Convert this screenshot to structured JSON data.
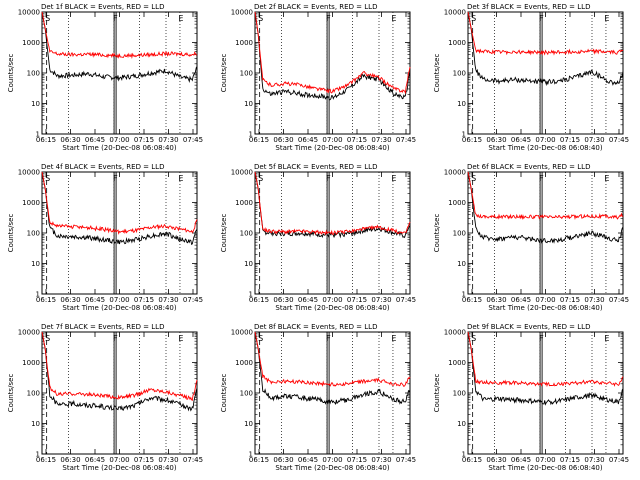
{
  "figure": {
    "title_suffix": "BLACK = Events, RED = LLD",
    "xlabel": "Start Time (20-Dec-08 06:08:40)",
    "ylabel": "Counts/sec",
    "marker_labels": [
      "S",
      "F",
      "E"
    ],
    "colors": {
      "events": "#000000",
      "lld": "#ff0000",
      "axes": "#000000"
    }
  },
  "chart_data": [
    {
      "type": "line",
      "title": "Det 1f BLACK = Events, RED = LLD",
      "yscale": "log",
      "ylim": [
        1,
        10000
      ],
      "yticks": [
        1,
        10,
        100,
        1000,
        10000
      ],
      "ytick_labels": [
        "1",
        "10",
        "100",
        "1000",
        "10000"
      ],
      "xlim": [
        0,
        100
      ],
      "xtick_labels": [
        "06:15",
        "06:30",
        "06:45",
        "07:00",
        "07:15",
        "07:30",
        "07:45"
      ],
      "xlabel": "Start Time (20-Dec-08 06:08:40)",
      "ylabel": "Counts/sec",
      "x": [
        0,
        2,
        5,
        10,
        20,
        30,
        40,
        50,
        60,
        70,
        80,
        90,
        97,
        100
      ],
      "series": [
        {
          "name": "Events",
          "color": "#000000",
          "values": [
            10000,
            3000,
            130,
            80,
            85,
            95,
            75,
            70,
            80,
            100,
            120,
            70,
            60,
            150
          ]
        },
        {
          "name": "LLD",
          "color": "#ff0000",
          "values": [
            10000,
            3000,
            500,
            420,
            400,
            410,
            390,
            370,
            380,
            400,
            430,
            420,
            400,
            450
          ]
        }
      ]
    },
    {
      "type": "line",
      "title": "Det 2f BLACK = Events, RED = LLD",
      "yscale": "log",
      "ylim": [
        1,
        10000
      ],
      "yticks": [
        1,
        10,
        100,
        1000,
        10000
      ],
      "ytick_labels": [
        "1",
        "10",
        "100",
        "1000",
        "10000"
      ],
      "xlim": [
        0,
        100
      ],
      "xtick_labels": [
        "06:15",
        "06:30",
        "06:45",
        "07:00",
        "07:15",
        "07:30",
        "07:45"
      ],
      "xlabel": "Start Time (20-Dec-08 06:08:40)",
      "ylabel": "Counts/sec",
      "x": [
        0,
        2,
        5,
        10,
        20,
        30,
        40,
        50,
        60,
        70,
        80,
        90,
        97,
        100
      ],
      "series": [
        {
          "name": "Events",
          "color": "#000000",
          "values": [
            10000,
            2000,
            30,
            20,
            25,
            20,
            18,
            15,
            30,
            80,
            60,
            20,
            15,
            120
          ]
        },
        {
          "name": "LLD",
          "color": "#ff0000",
          "values": [
            10000,
            2000,
            60,
            40,
            45,
            40,
            30,
            25,
            40,
            100,
            70,
            30,
            25,
            150
          ]
        }
      ]
    },
    {
      "type": "line",
      "title": "Det 3f BLACK = Events, RED = LLD",
      "yscale": "log",
      "ylim": [
        1,
        10000
      ],
      "yticks": [
        1,
        10,
        100,
        1000,
        10000
      ],
      "ytick_labels": [
        "1",
        "10",
        "100",
        "1000",
        "10000"
      ],
      "xlim": [
        0,
        100
      ],
      "xtick_labels": [
        "06:15",
        "06:30",
        "06:45",
        "07:00",
        "07:15",
        "07:30",
        "07:45"
      ],
      "xlabel": "Start Time (20-Dec-08 06:08:40)",
      "ylabel": "Counts/sec",
      "x": [
        0,
        2,
        5,
        10,
        20,
        30,
        40,
        50,
        60,
        70,
        80,
        90,
        97,
        100
      ],
      "series": [
        {
          "name": "Events",
          "color": "#000000",
          "values": [
            10000,
            3000,
            120,
            60,
            55,
            60,
            55,
            50,
            55,
            75,
            110,
            55,
            45,
            100
          ]
        },
        {
          "name": "LLD",
          "color": "#ff0000",
          "values": [
            10000,
            3000,
            550,
            500,
            480,
            500,
            480,
            470,
            480,
            500,
            520,
            490,
            470,
            600
          ]
        }
      ]
    },
    {
      "type": "line",
      "title": "Det 4f BLACK = Events, RED = LLD",
      "yscale": "log",
      "ylim": [
        1,
        10000
      ],
      "yticks": [
        1,
        10,
        100,
        1000,
        10000
      ],
      "ytick_labels": [
        "1",
        "10",
        "100",
        "1000",
        "10000"
      ],
      "xlim": [
        0,
        100
      ],
      "xtick_labels": [
        "06:15",
        "06:30",
        "06:45",
        "07:00",
        "07:15",
        "07:30",
        "07:45"
      ],
      "xlabel": "Start Time (20-Dec-08 06:08:40)",
      "ylabel": "Counts/sec",
      "x": [
        0,
        2,
        5,
        10,
        20,
        30,
        40,
        50,
        60,
        70,
        80,
        90,
        97,
        100
      ],
      "series": [
        {
          "name": "Events",
          "color": "#000000",
          "values": [
            10000,
            3000,
            150,
            80,
            75,
            70,
            60,
            50,
            60,
            80,
            95,
            60,
            50,
            130
          ]
        },
        {
          "name": "LLD",
          "color": "#ff0000",
          "values": [
            10000,
            3000,
            220,
            170,
            160,
            150,
            130,
            110,
            120,
            150,
            170,
            130,
            110,
            250
          ]
        }
      ]
    },
    {
      "type": "line",
      "title": "Det 5f BLACK = Events, RED = LLD",
      "yscale": "log",
      "ylim": [
        1,
        10000
      ],
      "yticks": [
        1,
        10,
        100,
        1000,
        10000
      ],
      "ytick_labels": [
        "1",
        "10",
        "100",
        "1000",
        "10000"
      ],
      "xlim": [
        0,
        100
      ],
      "xtick_labels": [
        "06:15",
        "06:30",
        "06:45",
        "07:00",
        "07:15",
        "07:30",
        "07:45"
      ],
      "xlabel": "Start Time (20-Dec-08 06:08:40)",
      "ylabel": "Counts/sec",
      "x": [
        0,
        2,
        5,
        10,
        20,
        30,
        40,
        50,
        60,
        70,
        80,
        90,
        97,
        100
      ],
      "series": [
        {
          "name": "Events",
          "color": "#000000",
          "values": [
            10000,
            3000,
            110,
            100,
            95,
            100,
            90,
            85,
            95,
            120,
            140,
            100,
            80,
            200
          ]
        },
        {
          "name": "LLD",
          "color": "#ff0000",
          "values": [
            10000,
            3000,
            130,
            115,
            110,
            115,
            105,
            100,
            110,
            135,
            155,
            115,
            95,
            230
          ]
        }
      ]
    },
    {
      "type": "line",
      "title": "Det 6f BLACK = Events, RED = LLD",
      "yscale": "log",
      "ylim": [
        1,
        10000
      ],
      "yticks": [
        1,
        10,
        100,
        1000,
        10000
      ],
      "ytick_labels": [
        "1",
        "10",
        "100",
        "1000",
        "10000"
      ],
      "xlim": [
        0,
        100
      ],
      "xtick_labels": [
        "06:15",
        "06:30",
        "06:45",
        "07:00",
        "07:15",
        "07:30",
        "07:45"
      ],
      "xlabel": "Start Time (20-Dec-08 06:08:40)",
      "ylabel": "Counts/sec",
      "x": [
        0,
        2,
        5,
        10,
        20,
        30,
        40,
        50,
        60,
        70,
        80,
        90,
        97,
        100
      ],
      "series": [
        {
          "name": "Events",
          "color": "#000000",
          "values": [
            10000,
            3000,
            130,
            70,
            65,
            75,
            65,
            55,
            60,
            80,
            100,
            70,
            55,
            140
          ]
        },
        {
          "name": "LLD",
          "color": "#ff0000",
          "values": [
            10000,
            3000,
            380,
            350,
            340,
            350,
            340,
            330,
            335,
            345,
            360,
            345,
            330,
            400
          ]
        }
      ]
    },
    {
      "type": "line",
      "title": "Det 7f BLACK = Events, RED = LLD",
      "yscale": "log",
      "ylim": [
        1,
        10000
      ],
      "yticks": [
        1,
        10,
        100,
        1000,
        10000
      ],
      "ytick_labels": [
        "1",
        "10",
        "100",
        "1000",
        "10000"
      ],
      "xlim": [
        0,
        100
      ],
      "xtick_labels": [
        "06:15",
        "06:30",
        "06:45",
        "07:00",
        "07:15",
        "07:30",
        "07:45"
      ],
      "xlabel": "Start Time (20-Dec-08 06:08:40)",
      "ylabel": "Counts/sec",
      "x": [
        0,
        2,
        5,
        10,
        20,
        30,
        40,
        50,
        60,
        70,
        80,
        90,
        97,
        100
      ],
      "series": [
        {
          "name": "Events",
          "color": "#000000",
          "values": [
            10000,
            3000,
            90,
            40,
            45,
            40,
            35,
            30,
            40,
            70,
            60,
            40,
            30,
            150
          ]
        },
        {
          "name": "LLD",
          "color": "#ff0000",
          "values": [
            10000,
            3000,
            150,
            90,
            95,
            90,
            80,
            70,
            85,
            130,
            110,
            80,
            65,
            250
          ]
        }
      ]
    },
    {
      "type": "line",
      "title": "Det 8f BLACK = Events, RED = LLD",
      "yscale": "log",
      "ylim": [
        1,
        10000
      ],
      "yticks": [
        1,
        10,
        100,
        1000,
        10000
      ],
      "ytick_labels": [
        "1",
        "10",
        "100",
        "1000",
        "10000"
      ],
      "xlim": [
        0,
        100
      ],
      "xtick_labels": [
        "06:15",
        "06:30",
        "06:45",
        "07:00",
        "07:15",
        "07:30",
        "07:45"
      ],
      "xlabel": "Start Time (20-Dec-08 06:08:40)",
      "ylabel": "Counts/sec",
      "x": [
        0,
        2,
        5,
        10,
        20,
        30,
        40,
        50,
        60,
        70,
        80,
        90,
        97,
        100
      ],
      "series": [
        {
          "name": "Events",
          "color": "#000000",
          "values": [
            10000,
            3000,
            130,
            70,
            80,
            70,
            60,
            50,
            60,
            90,
            110,
            60,
            50,
            150
          ]
        },
        {
          "name": "LLD",
          "color": "#ff0000",
          "values": [
            10000,
            3000,
            350,
            230,
            240,
            230,
            210,
            190,
            200,
            240,
            260,
            200,
            180,
            350
          ]
        }
      ]
    },
    {
      "type": "line",
      "title": "Det 9f BLACK = Events, RED = LLD",
      "yscale": "log",
      "ylim": [
        1,
        10000
      ],
      "yticks": [
        1,
        10,
        100,
        1000,
        10000
      ],
      "ytick_labels": [
        "1",
        "10",
        "100",
        "1000",
        "10000"
      ],
      "xlim": [
        0,
        100
      ],
      "xtick_labels": [
        "06:15",
        "06:30",
        "06:45",
        "07:00",
        "07:15",
        "07:30",
        "07:45"
      ],
      "xlabel": "Start Time (20-Dec-08 06:08:40)",
      "ylabel": "Counts/sec",
      "x": [
        0,
        2,
        5,
        10,
        20,
        30,
        40,
        50,
        60,
        70,
        80,
        90,
        97,
        100
      ],
      "series": [
        {
          "name": "Events",
          "color": "#000000",
          "values": [
            10000,
            3000,
            120,
            60,
            65,
            60,
            55,
            50,
            55,
            70,
            85,
            60,
            50,
            130
          ]
        },
        {
          "name": "LLD",
          "color": "#ff0000",
          "values": [
            10000,
            3000,
            250,
            220,
            215,
            220,
            200,
            190,
            195,
            215,
            235,
            210,
            190,
            300
          ]
        }
      ]
    }
  ]
}
